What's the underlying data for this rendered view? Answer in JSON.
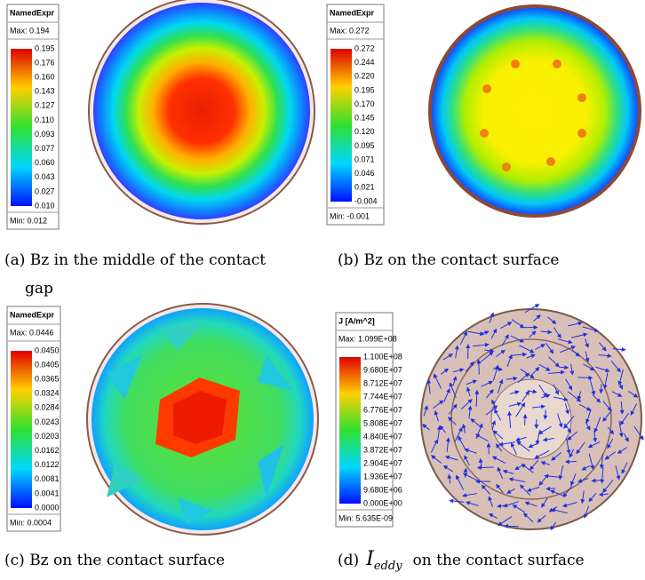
{
  "panels": [
    {
      "legend": {
        "title": "NamedExpr",
        "max": "Max: 0.194",
        "min": "Min: 0.012",
        "labels": [
          "0.195",
          "0.176",
          "0.160",
          "0.143",
          "0.127",
          "0.110",
          "0.093",
          "0.077",
          "0.060",
          "0.043",
          "0.027",
          "0.010"
        ]
      },
      "caption": [
        "(a) Bz in the middle of the contact",
        "gap"
      ]
    },
    {
      "legend": {
        "title": "NamedExpr",
        "max": "Max: 0.272",
        "min": "Min: -0.001",
        "labels": [
          "0.272",
          "0.244",
          "0.220",
          "0.195",
          "0.170",
          "0.145",
          "0.120",
          "0.095",
          "0.071",
          "0.046",
          "0.021",
          "-0.004"
        ]
      },
      "caption": [
        "(b) Bz on the contact surface"
      ]
    },
    {
      "legend": {
        "title": "NamedExpr",
        "max": "Max: 0.0446",
        "min": "Min: 0.0004",
        "labels": [
          "0.0450",
          "0.0405",
          "0.0365",
          "0.0324",
          "0.0284",
          "0.0243",
          "0.0203",
          "0.0162",
          "0.0122",
          "0.0081",
          "0.0041",
          "0.0000"
        ]
      },
      "caption": [
        "(c) Bz on the contact surface"
      ]
    },
    {
      "legend": {
        "title": "J [A/m^2]",
        "max": "Max:  1.099E+08",
        "min": "Min:  5.635E-09",
        "labels": [
          "1.100E+08",
          "9.680E+07",
          "8.712E+07",
          "7.744E+07",
          "6.776E+07",
          "5.808E+07",
          "4.840E+07",
          "3.872E+07",
          "2.904E+07",
          "1.936E+07",
          "9.680E+06",
          "0.000E+00"
        ]
      },
      "caption": {
        "prefix": "(d)",
        "symbol": "I",
        "subscript": "eddy",
        "suffix": "on the contact surface"
      }
    }
  ]
}
